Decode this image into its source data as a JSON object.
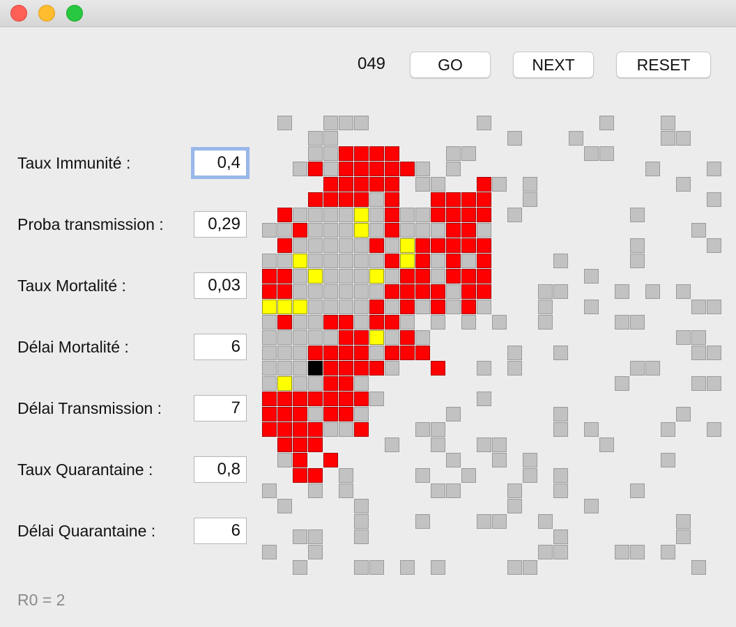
{
  "toolbar": {
    "counter": "049",
    "buttons": [
      "GO",
      "NEXT",
      "RESET"
    ]
  },
  "fields": [
    {
      "label": "Taux Immunité :",
      "value": "0,4"
    },
    {
      "label": "Proba transmission :",
      "value": "0,29"
    },
    {
      "label": "Taux Mortalité :",
      "value": "0,03"
    },
    {
      "label": "Délai Mortalité :",
      "value": "6"
    },
    {
      "label": "Délai Transmission :",
      "value": "7"
    },
    {
      "label": "Taux Quarantaine :",
      "value": "0,8"
    },
    {
      "label": "Délai Quarantaine :",
      "value": "6"
    }
  ],
  "footer": "R0 = 2"
}
